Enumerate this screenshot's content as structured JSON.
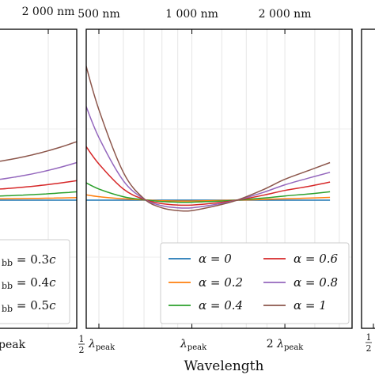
{
  "chart_data": [
    {
      "panel": "left (cropped)",
      "type": "line",
      "top_tick_labels": [
        "2 000 nm"
      ],
      "bottom_tick_labels": [
        "peak"
      ],
      "legend_visible_fragments": [
        "bb = 0.3c",
        "bb = 0.4c",
        "bb = 0.5c"
      ],
      "series": [
        {
          "color": "#1f77b4",
          "x": [
            0.0,
            0.15
          ],
          "y": [
            0.0,
            0.0
          ]
        },
        {
          "color": "#ff7f0e",
          "x": [
            0.0,
            0.15
          ],
          "y": [
            0.01,
            0.018
          ]
        },
        {
          "color": "#2ca02c",
          "x": [
            0.0,
            0.15
          ],
          "y": [
            0.03,
            0.06
          ]
        },
        {
          "color": "#d62728",
          "x": [
            0.0,
            0.15
          ],
          "y": [
            0.08,
            0.14
          ]
        },
        {
          "color": "#9467bd",
          "x": [
            0.0,
            0.15
          ],
          "y": [
            0.15,
            0.27
          ]
        },
        {
          "color": "#8c564b",
          "x": [
            0.0,
            0.15
          ],
          "y": [
            0.28,
            0.42
          ]
        }
      ]
    },
    {
      "panel": "center",
      "type": "line",
      "xlabel": "Wavelength",
      "x_scale": "log",
      "bottom_tick_labels": [
        "1/2 λpeak",
        "λpeak",
        "2 λpeak"
      ],
      "top_tick_labels": [
        "500 nm",
        "1 000 nm",
        "2 000 nm"
      ],
      "legend_placement": "lower-center (2 columns)",
      "series": [
        {
          "name": "α = 0",
          "color": "#1f77b4",
          "x": [
            0.45,
            0.7,
            1.0,
            1.4,
            2.8
          ],
          "y": [
            0,
            0,
            0,
            0,
            0
          ]
        },
        {
          "name": "α = 0.2",
          "color": "#ff7f0e",
          "x": [
            0.45,
            0.5,
            0.6,
            0.7,
            0.8,
            0.9,
            1.0,
            1.2,
            1.4,
            1.7,
            2.0,
            2.4,
            2.8
          ],
          "y": [
            0.04,
            0.025,
            0.01,
            0.002,
            -0.004,
            -0.006,
            -0.006,
            -0.003,
            0.0,
            0.005,
            0.01,
            0.015,
            0.02
          ]
        },
        {
          "name": "α = 0.4",
          "color": "#2ca02c",
          "x": [
            0.45,
            0.5,
            0.6,
            0.7,
            0.8,
            0.9,
            1.0,
            1.2,
            1.4,
            1.7,
            2.0,
            2.4,
            2.8
          ],
          "y": [
            0.13,
            0.08,
            0.025,
            0.003,
            -0.01,
            -0.015,
            -0.015,
            -0.008,
            0.0,
            0.015,
            0.03,
            0.045,
            0.06
          ]
        },
        {
          "name": "α = 0.6",
          "color": "#d62728",
          "x": [
            0.45,
            0.5,
            0.6,
            0.7,
            0.8,
            0.9,
            1.0,
            1.2,
            1.4,
            1.7,
            2.0,
            2.4,
            2.8
          ],
          "y": [
            0.4,
            0.26,
            0.08,
            0.005,
            -0.025,
            -0.035,
            -0.035,
            -0.02,
            0.0,
            0.035,
            0.07,
            0.1,
            0.13
          ]
        },
        {
          "name": "α = 0.8",
          "color": "#9467bd",
          "x": [
            0.45,
            0.5,
            0.6,
            0.7,
            0.8,
            0.9,
            1.0,
            1.2,
            1.4,
            1.7,
            2.0,
            2.4,
            2.8
          ],
          "y": [
            0.7,
            0.45,
            0.14,
            0.008,
            -0.04,
            -0.055,
            -0.055,
            -0.03,
            0.0,
            0.055,
            0.11,
            0.16,
            0.2
          ]
        },
        {
          "name": "α = 1",
          "color": "#8c564b",
          "x": [
            0.45,
            0.5,
            0.6,
            0.7,
            0.8,
            0.9,
            1.0,
            1.2,
            1.4,
            1.7,
            2.0,
            2.4,
            2.8
          ],
          "y": [
            1.0,
            0.65,
            0.2,
            0.01,
            -0.055,
            -0.075,
            -0.075,
            -0.04,
            0.0,
            0.075,
            0.15,
            0.215,
            0.27
          ]
        }
      ],
      "ylim": [
        -0.35,
        1.05
      ],
      "grid": "vertical"
    },
    {
      "panel": "right (cropped)",
      "bottom_tick_labels": [
        "1/2"
      ]
    }
  ]
}
